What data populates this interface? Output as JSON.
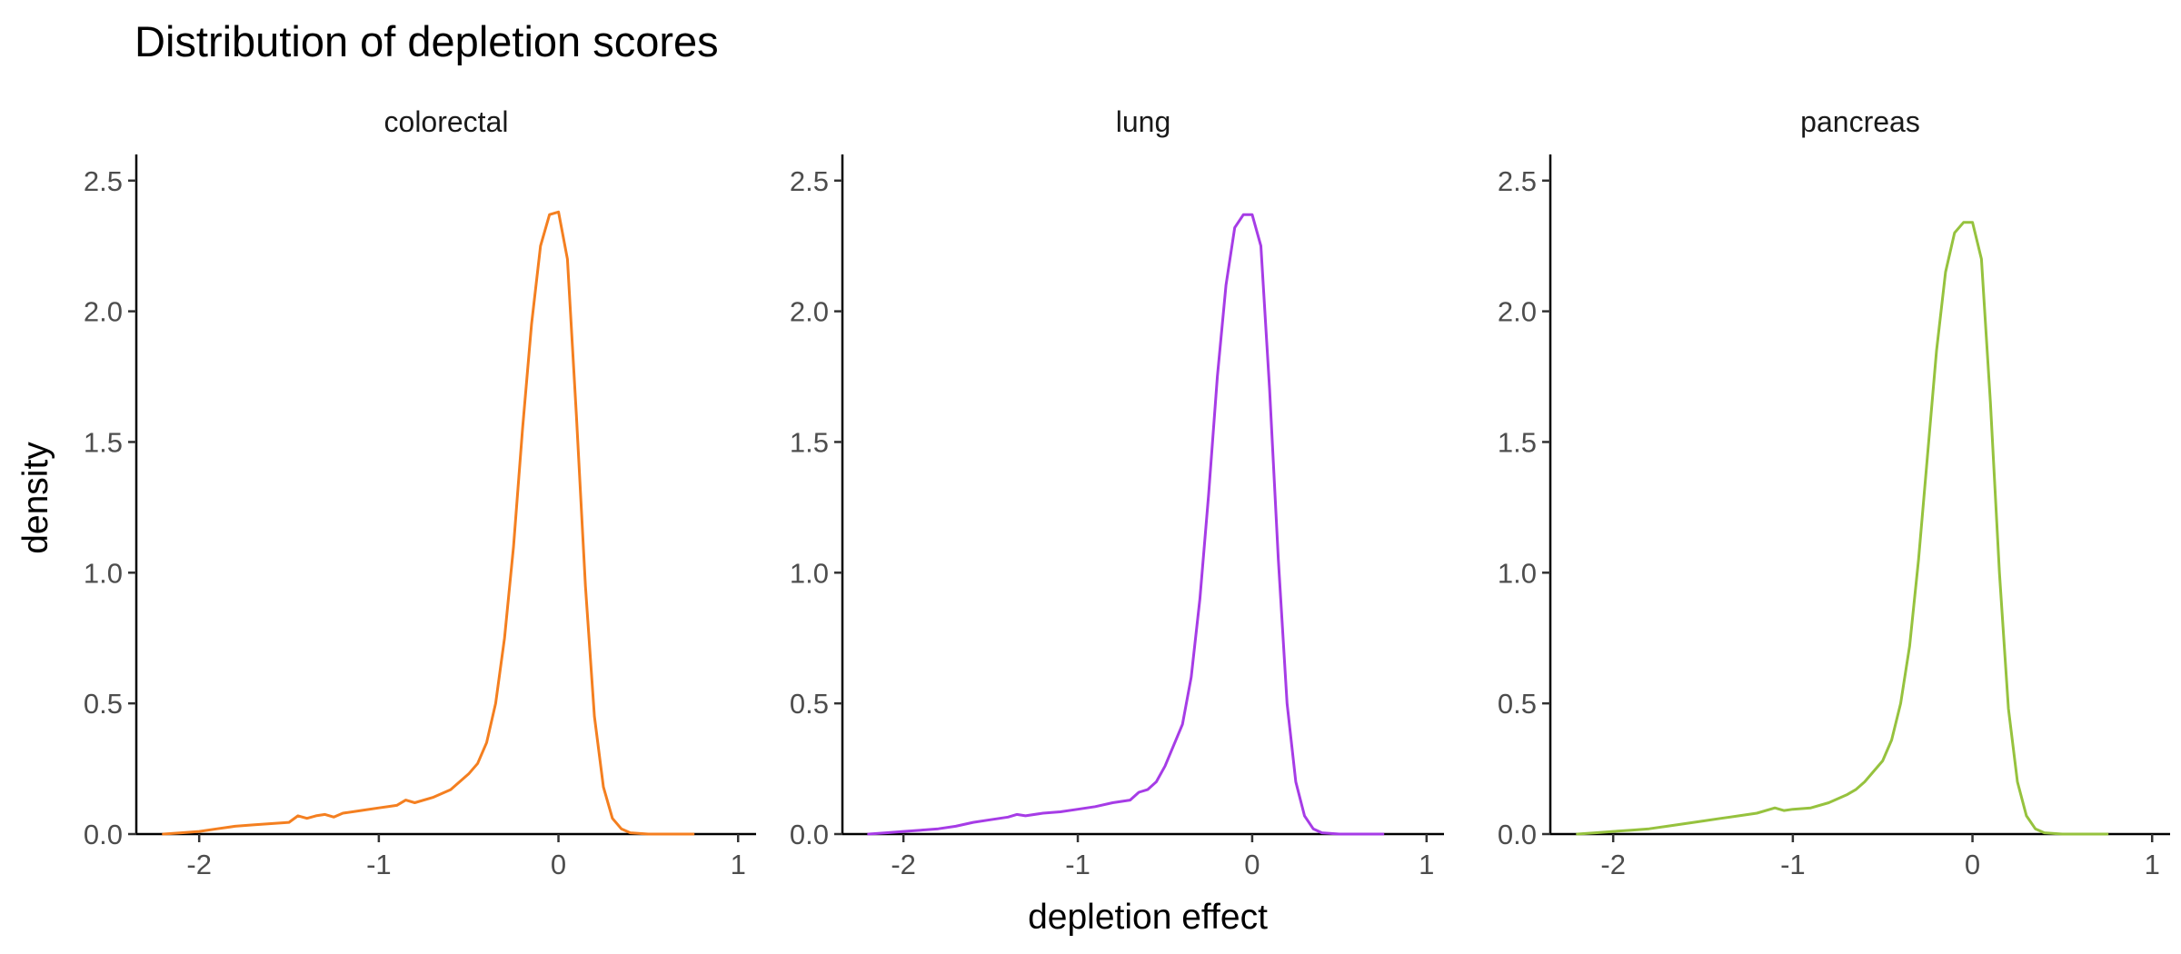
{
  "chart_data": {
    "type": "line",
    "title": "Distribution of depletion scores",
    "xlabel": "depletion effect",
    "ylabel": "density",
    "xlim": [
      -2.35,
      1.1
    ],
    "ylim": [
      0,
      2.6
    ],
    "x_ticks": [
      -2,
      -1,
      0,
      1
    ],
    "x_tick_labels": [
      "-2",
      "-1",
      "0",
      "1"
    ],
    "y_ticks": [
      0,
      0.5,
      1,
      1.5,
      2,
      2.5
    ],
    "y_tick_labels": [
      "0.0",
      "0.5",
      "1.0",
      "1.5",
      "2.0",
      "2.5"
    ],
    "grid": false,
    "legend": "none",
    "panels": [
      {
        "name": "colorectal",
        "color": "#F47F20",
        "x": [
          -2.2,
          -2.1,
          -2.0,
          -1.9,
          -1.8,
          -1.7,
          -1.6,
          -1.5,
          -1.45,
          -1.4,
          -1.35,
          -1.3,
          -1.25,
          -1.2,
          -1.1,
          -1.0,
          -0.9,
          -0.85,
          -0.8,
          -0.7,
          -0.6,
          -0.5,
          -0.45,
          -0.4,
          -0.35,
          -0.3,
          -0.25,
          -0.2,
          -0.15,
          -0.1,
          -0.05,
          0.0,
          0.05,
          0.1,
          0.15,
          0.2,
          0.25,
          0.3,
          0.35,
          0.4,
          0.5,
          0.6,
          0.75
        ],
        "y": [
          0.0,
          0.005,
          0.01,
          0.02,
          0.03,
          0.035,
          0.04,
          0.045,
          0.07,
          0.06,
          0.07,
          0.075,
          0.065,
          0.08,
          0.09,
          0.1,
          0.11,
          0.13,
          0.12,
          0.14,
          0.17,
          0.23,
          0.27,
          0.35,
          0.5,
          0.75,
          1.1,
          1.55,
          1.95,
          2.25,
          2.37,
          2.38,
          2.2,
          1.6,
          0.95,
          0.45,
          0.18,
          0.06,
          0.02,
          0.005,
          0.0,
          0.0,
          0.0
        ]
      },
      {
        "name": "lung",
        "color": "#A63CE6",
        "x": [
          -2.2,
          -2.1,
          -2.0,
          -1.9,
          -1.8,
          -1.7,
          -1.6,
          -1.5,
          -1.4,
          -1.35,
          -1.3,
          -1.2,
          -1.1,
          -1.0,
          -0.9,
          -0.8,
          -0.7,
          -0.65,
          -0.6,
          -0.55,
          -0.5,
          -0.4,
          -0.35,
          -0.3,
          -0.25,
          -0.2,
          -0.15,
          -0.1,
          -0.05,
          0.0,
          0.05,
          0.1,
          0.15,
          0.2,
          0.25,
          0.3,
          0.35,
          0.4,
          0.5,
          0.6,
          0.75
        ],
        "y": [
          0.0,
          0.005,
          0.01,
          0.015,
          0.02,
          0.03,
          0.045,
          0.055,
          0.065,
          0.075,
          0.07,
          0.08,
          0.085,
          0.095,
          0.105,
          0.12,
          0.13,
          0.16,
          0.17,
          0.2,
          0.26,
          0.42,
          0.6,
          0.9,
          1.3,
          1.75,
          2.1,
          2.32,
          2.37,
          2.37,
          2.25,
          1.7,
          1.05,
          0.5,
          0.2,
          0.07,
          0.02,
          0.005,
          0.0,
          0.0,
          0.0
        ]
      },
      {
        "name": "pancreas",
        "color": "#96C23E",
        "x": [
          -2.2,
          -2.1,
          -2.0,
          -1.9,
          -1.8,
          -1.7,
          -1.6,
          -1.5,
          -1.4,
          -1.3,
          -1.2,
          -1.1,
          -1.05,
          -1.0,
          -0.9,
          -0.8,
          -0.7,
          -0.65,
          -0.6,
          -0.5,
          -0.45,
          -0.4,
          -0.35,
          -0.3,
          -0.25,
          -0.2,
          -0.15,
          -0.1,
          -0.05,
          0.0,
          0.05,
          0.1,
          0.15,
          0.2,
          0.25,
          0.3,
          0.35,
          0.4,
          0.5,
          0.6,
          0.75
        ],
        "y": [
          0.0,
          0.005,
          0.01,
          0.015,
          0.02,
          0.03,
          0.04,
          0.05,
          0.06,
          0.07,
          0.08,
          0.1,
          0.09,
          0.095,
          0.1,
          0.12,
          0.15,
          0.17,
          0.2,
          0.28,
          0.36,
          0.5,
          0.72,
          1.05,
          1.45,
          1.85,
          2.15,
          2.3,
          2.34,
          2.34,
          2.2,
          1.65,
          1.0,
          0.48,
          0.2,
          0.07,
          0.02,
          0.005,
          0.0,
          0.0,
          0.0
        ]
      }
    ]
  }
}
